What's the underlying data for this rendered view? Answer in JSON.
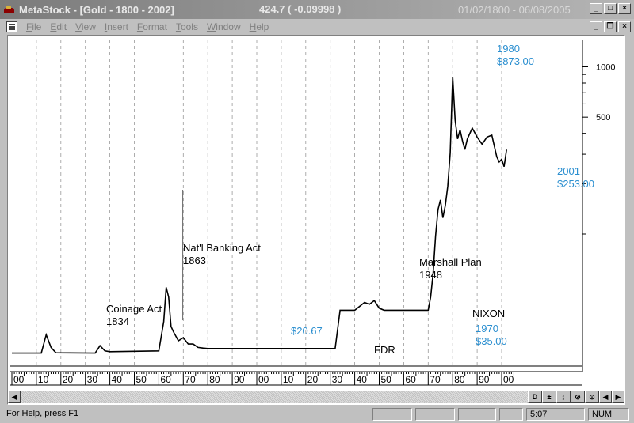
{
  "window": {
    "app_name": "MetaStock",
    "title": "MetaStock - [Gold - 1800 - 2002]",
    "last_value": "424.7 ( -0.09998 )",
    "date_range": "01/02/1800 - 06/08/2005"
  },
  "menu": [
    "File",
    "Edit",
    "View",
    "Insert",
    "Format",
    "Tools",
    "Window",
    "Help"
  ],
  "chart": {
    "x_tick_labels": [
      "00",
      "10",
      "20",
      "30",
      "40",
      "50",
      "60",
      "70",
      "80",
      "90",
      "00",
      "10",
      "20",
      "30",
      "40",
      "50",
      "60",
      "70",
      "80",
      "90",
      "00"
    ],
    "y_tick_labels": [
      "1000",
      "500"
    ],
    "y_scale": "log",
    "annotations": [
      {
        "id": "coinage-act",
        "lines": [
          "Coinage Act",
          "1834"
        ],
        "color": "#000000"
      },
      {
        "id": "banking-act",
        "lines": [
          "Nat'l Banking Act",
          "1863"
        ],
        "color": "#000000"
      },
      {
        "id": "price-2067",
        "lines": [
          "$20.67"
        ],
        "color": "#2b8fd0"
      },
      {
        "id": "fdr",
        "lines": [
          "FDR"
        ],
        "color": "#000000"
      },
      {
        "id": "marshall-plan",
        "lines": [
          "Marshall Plan",
          "1948"
        ],
        "color": "#000000"
      },
      {
        "id": "nixon",
        "lines": [
          "NIXON"
        ],
        "color": "#000000"
      },
      {
        "id": "year-1970",
        "lines": [
          "1970",
          "$35.00"
        ],
        "color": "#2b8fd0"
      },
      {
        "id": "year-1980",
        "lines": [
          "1980",
          "$873.00"
        ],
        "color": "#2b8fd0"
      },
      {
        "id": "year-2001",
        "lines": [
          "2001",
          "$253.00"
        ],
        "color": "#2b8fd0"
      }
    ]
  },
  "chart_data": {
    "type": "line",
    "y_scale": "log",
    "x": [
      1800,
      1812,
      1814,
      1816,
      1818,
      1834,
      1836,
      1838,
      1840,
      1860,
      1862,
      1863,
      1864,
      1865,
      1866,
      1868,
      1870,
      1872,
      1874,
      1876,
      1878,
      1880,
      1932,
      1934,
      1936,
      1940,
      1944,
      1946,
      1948,
      1950,
      1952,
      1960,
      1968,
      1970,
      1971,
      1972,
      1973,
      1974,
      1975,
      1976,
      1977,
      1978,
      1979,
      1980,
      1981,
      1982,
      1983,
      1984,
      1985,
      1986,
      1988,
      1990,
      1992,
      1994,
      1996,
      1998,
      1999,
      2000,
      2001,
      2002
    ],
    "y": [
      19.4,
      19.4,
      25,
      21,
      19.5,
      19.4,
      21.5,
      20.0,
      19.8,
      20.0,
      30,
      48,
      42,
      28,
      26,
      23,
      24,
      22,
      22,
      21,
      20.8,
      20.67,
      20.67,
      35,
      35,
      35,
      39,
      38,
      40,
      36,
      35,
      35,
      35,
      35,
      42,
      58,
      97,
      140,
      160,
      125,
      148,
      193,
      306,
      873,
      480,
      370,
      420,
      360,
      320,
      370,
      430,
      380,
      345,
      380,
      390,
      290,
      270,
      280,
      253,
      320
    ]
  },
  "scrollbar": {
    "tool_labels": [
      "D",
      "±",
      "↨",
      "⊘",
      "⊙"
    ]
  },
  "status": {
    "help_text": "For Help, press F1",
    "time": "5:07",
    "num": "NUM"
  }
}
